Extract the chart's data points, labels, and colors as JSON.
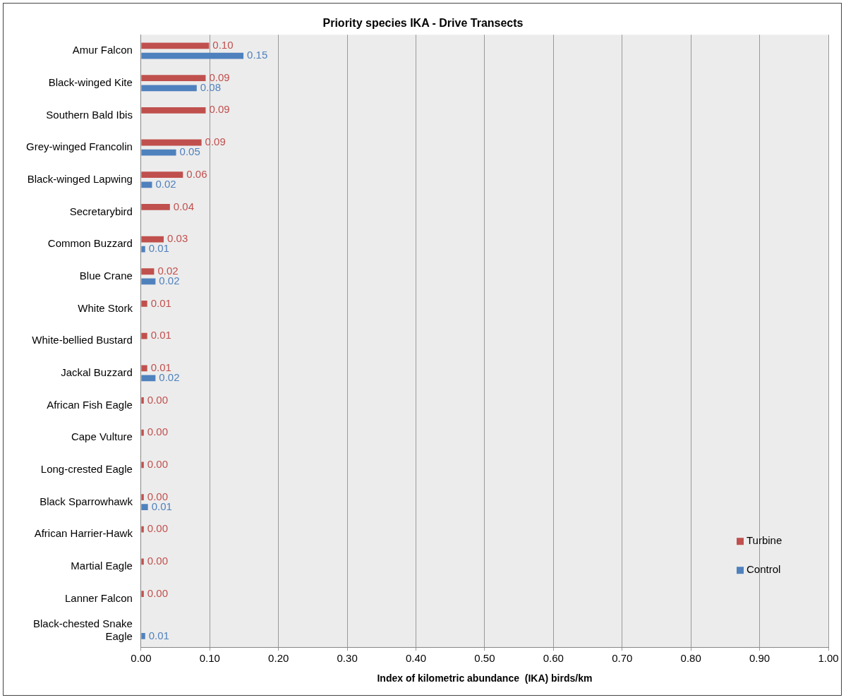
{
  "chart_data": {
    "type": "bar",
    "orientation": "horizontal",
    "title": "Priority species IKA - Drive Transects",
    "xlabel": "Index of kilometric abundance  (IKA) birds/km",
    "categories": [
      "Amur Falcon",
      "Black-winged Kite",
      "Southern Bald Ibis",
      "Grey-winged Francolin",
      "Black-winged Lapwing",
      "Secretarybird",
      "Common Buzzard",
      "Blue Crane",
      "White Stork",
      "White-bellied Bustard",
      "Jackal Buzzard",
      "African Fish Eagle",
      "Cape Vulture",
      "Long-crested Eagle",
      "Black Sparrowhawk",
      "African Harrier-Hawk",
      "Martial Eagle",
      "Lanner Falcon",
      "Black-chested Snake Eagle"
    ],
    "series": [
      {
        "name": "Turbine",
        "color": "#c0504d",
        "values": [
          0.099,
          0.094,
          0.094,
          0.088,
          0.061,
          0.042,
          0.033,
          0.019,
          0.009,
          0.009,
          0.009,
          0.004,
          0.004,
          0.004,
          0.004,
          0.004,
          0.004,
          0.004,
          null
        ],
        "value_labels": [
          "0.10",
          "0.09",
          "0.09",
          "0.09",
          "0.06",
          "0.04",
          "0.03",
          "0.02",
          "0.01",
          "0.01",
          "0.01",
          "0.00",
          "0.00",
          "0.00",
          "0.00",
          "0.00",
          "0.00",
          "0.00",
          null
        ]
      },
      {
        "name": "Control",
        "color": "#4f81bd",
        "values": [
          0.149,
          0.081,
          null,
          0.051,
          0.016,
          null,
          0.006,
          0.021,
          null,
          null,
          0.021,
          null,
          null,
          null,
          0.01,
          null,
          null,
          null,
          0.006
        ],
        "value_labels": [
          "0.15",
          "0.08",
          null,
          "0.05",
          "0.02",
          null,
          "0.01",
          "0.02",
          null,
          null,
          "0.02",
          null,
          null,
          null,
          "0.01",
          null,
          null,
          null,
          "0.01"
        ]
      }
    ],
    "xlim": [
      0,
      1
    ],
    "xticks": [
      {
        "value": 0,
        "label": "0.00"
      },
      {
        "value": 0.1,
        "label": "0.10"
      },
      {
        "value": 0.2,
        "label": "0.20"
      },
      {
        "value": 0.3,
        "label": "0.30"
      },
      {
        "value": 0.4,
        "label": "0.40"
      },
      {
        "value": 0.5,
        "label": "0.50"
      },
      {
        "value": 0.6,
        "label": "0.60"
      },
      {
        "value": 0.7,
        "label": "0.70"
      },
      {
        "value": 0.8,
        "label": "0.80"
      },
      {
        "value": 0.9,
        "label": "0.90"
      },
      {
        "value": 1,
        "label": "1.00"
      }
    ],
    "grid": "x",
    "legend": "bottom right"
  }
}
